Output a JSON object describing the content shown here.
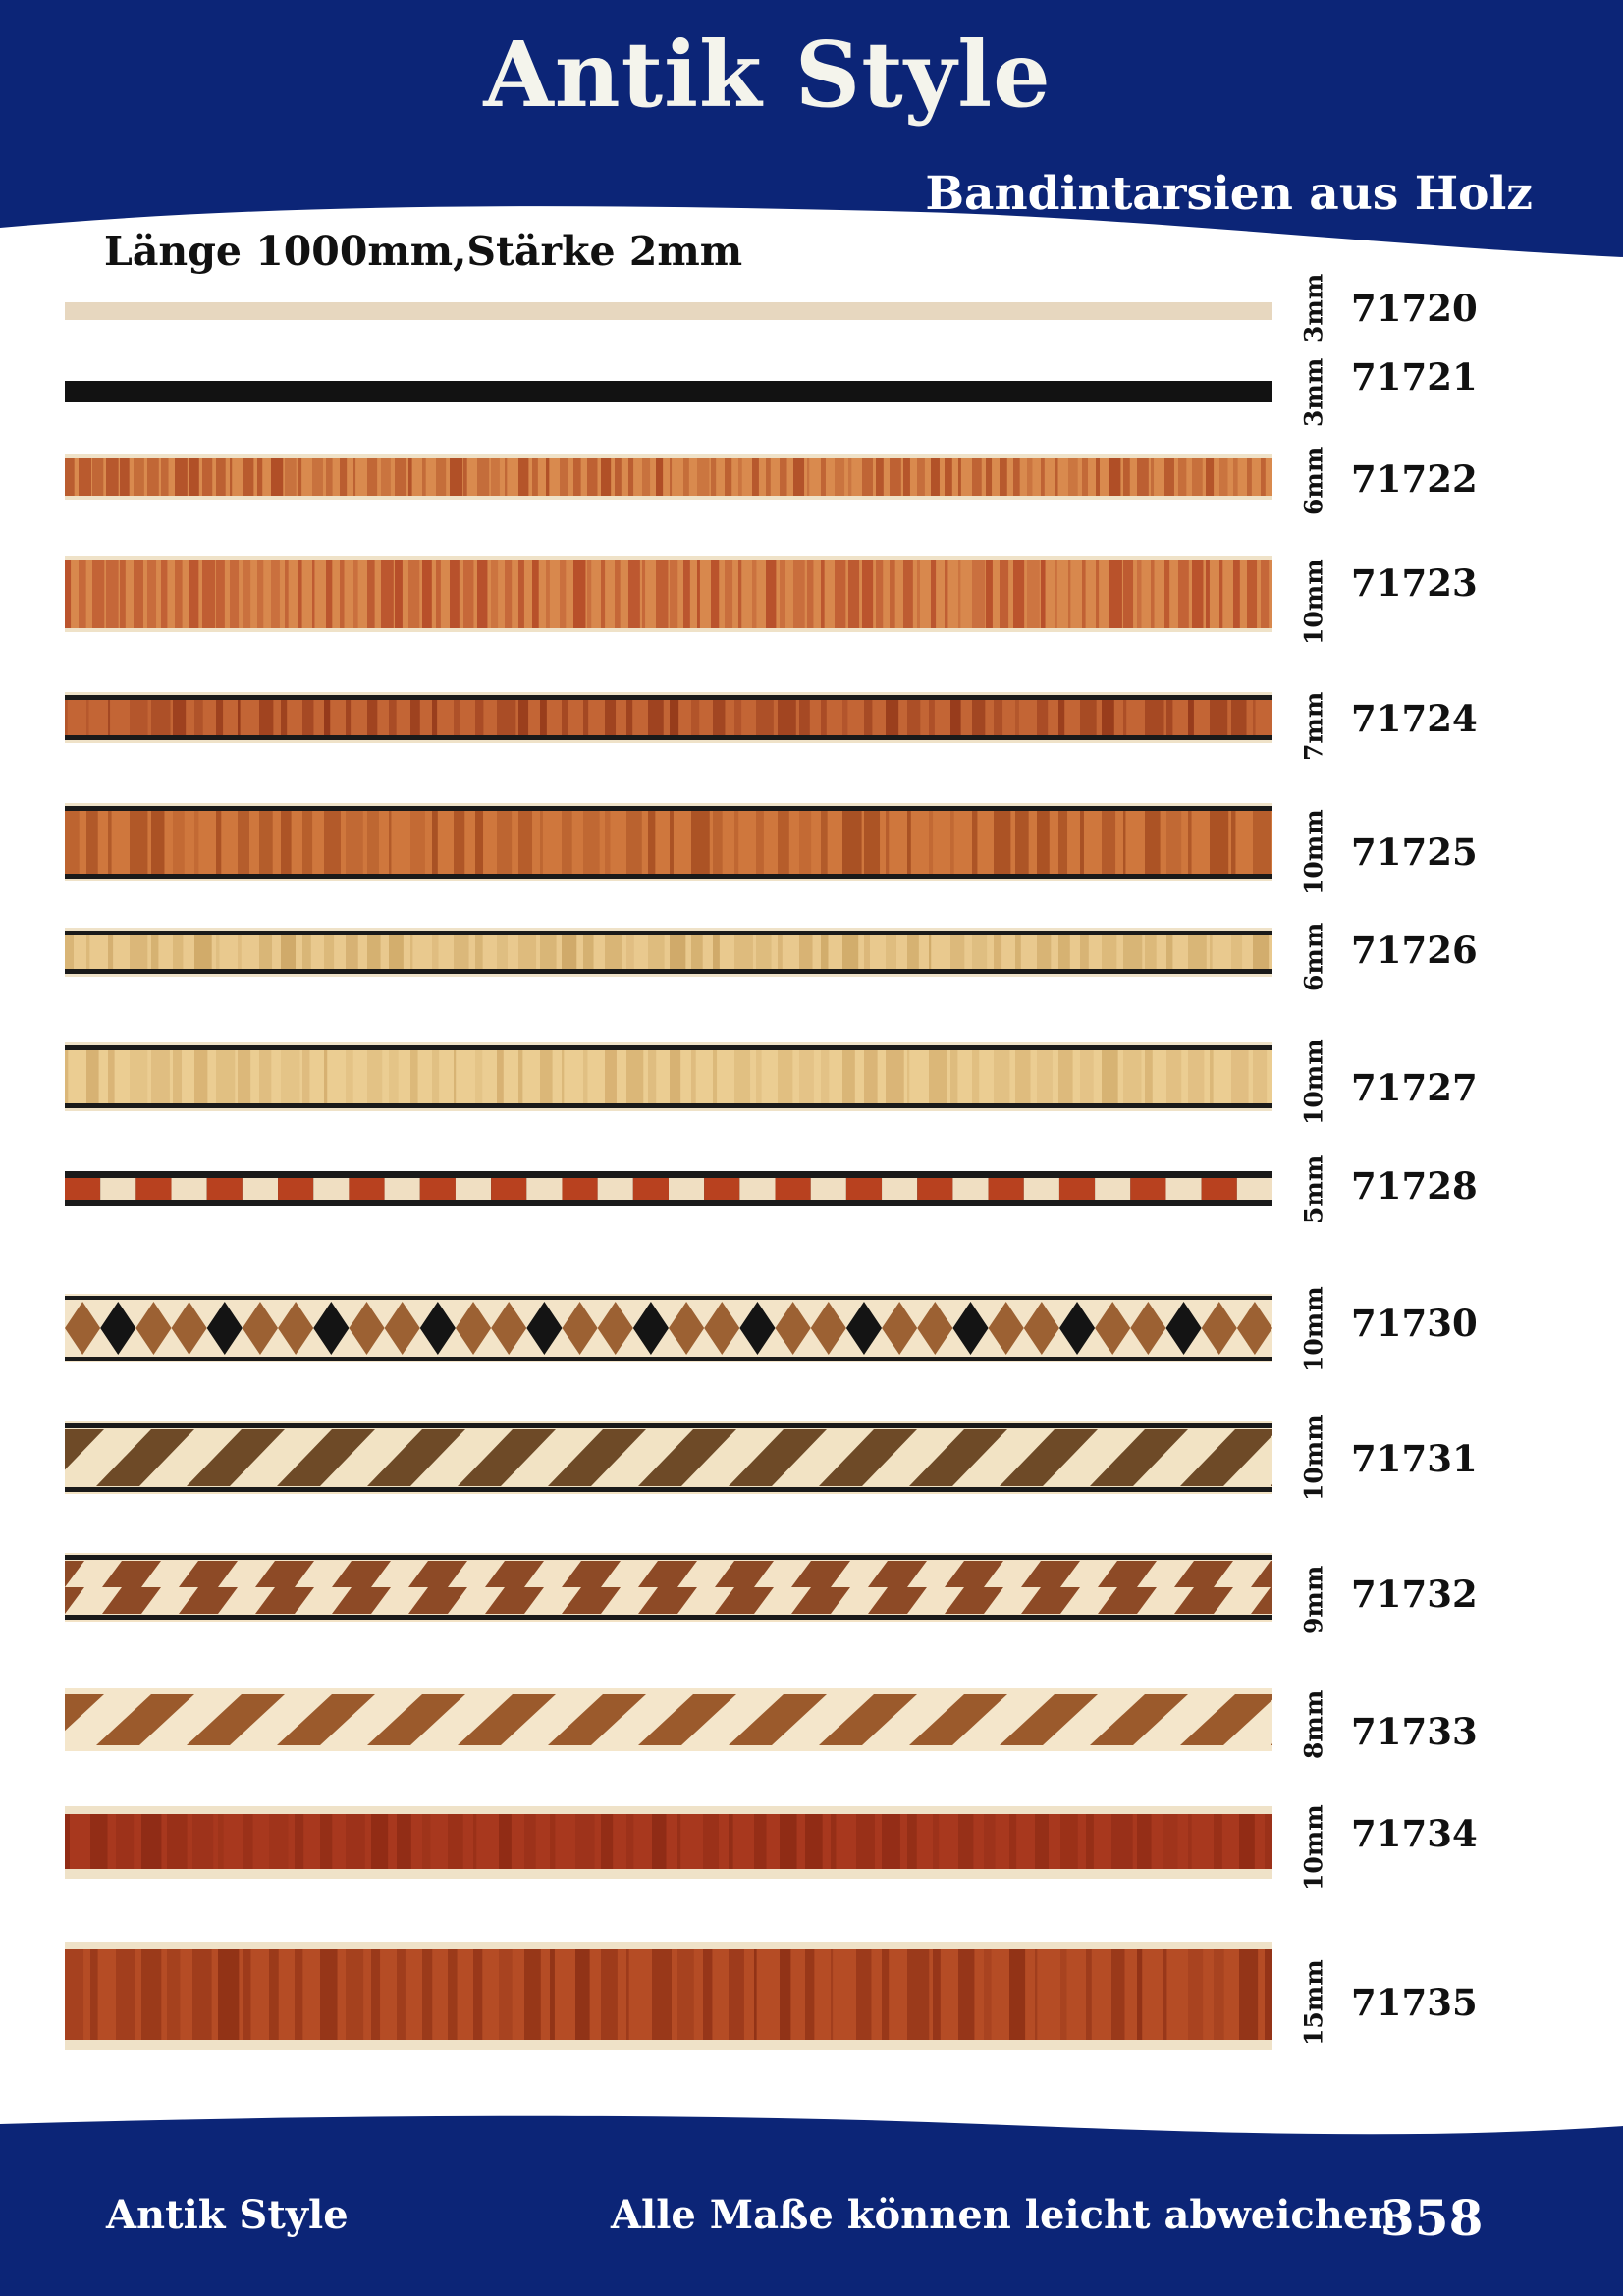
{
  "header": {
    "brand": "Antik Style",
    "subtitle": "Bandintarsien aus Holz",
    "spec": "Länge 1000mm,Stärke 2mm",
    "color": "#0c2577"
  },
  "products": [
    {
      "article": "71720",
      "width": "3mm",
      "pattern": "plain",
      "colors": [
        "#e7d7bf"
      ]
    },
    {
      "article": "71721",
      "width": "3mm",
      "pattern": "plain",
      "colors": [
        "#121212"
      ]
    },
    {
      "article": "71722",
      "width": "6mm",
      "pattern": "grain",
      "colors": [
        "#d98a4e",
        "#a8431f"
      ]
    },
    {
      "article": "71723",
      "width": "10mm",
      "pattern": "grain",
      "colors": [
        "#d8884d",
        "#b14524"
      ]
    },
    {
      "article": "71724",
      "width": "7mm",
      "pattern": "lined-grain",
      "colors": [
        "#c36535",
        "#8e3316"
      ]
    },
    {
      "article": "71725",
      "width": "10mm",
      "pattern": "lined-grain",
      "colors": [
        "#cf773d",
        "#a24a1f"
      ]
    },
    {
      "article": "71726",
      "width": "6mm",
      "pattern": "lined-grain",
      "colors": [
        "#e9c98e",
        "#cba462"
      ]
    },
    {
      "article": "71727",
      "width": "10mm",
      "pattern": "lined-grain",
      "colors": [
        "#ebcd92",
        "#d3ac6c"
      ]
    },
    {
      "article": "71728",
      "width": "5mm",
      "pattern": "checker",
      "colors": [
        "#b8411f",
        "#f0dfc2"
      ]
    },
    {
      "article": "71730",
      "width": "10mm",
      "pattern": "diamond",
      "colors": [
        "#9c6133",
        "#141414",
        "#f3e4c8"
      ]
    },
    {
      "article": "71731",
      "width": "10mm",
      "pattern": "diagonal",
      "colors": [
        "#6e4a27",
        "#f2e3c4"
      ]
    },
    {
      "article": "71732",
      "width": "9mm",
      "pattern": "herringbone",
      "colors": [
        "#8d4a26",
        "#f3e3c6"
      ]
    },
    {
      "article": "71733",
      "width": "8mm",
      "pattern": "diagonal-light",
      "colors": [
        "#9b5a2c",
        "#f4e6cb"
      ]
    },
    {
      "article": "71734",
      "width": "10mm",
      "pattern": "grain-border",
      "colors": [
        "#a8381e",
        "#8c2a14"
      ]
    },
    {
      "article": "71735",
      "width": "15mm",
      "pattern": "grain-border",
      "colors": [
        "#b54c25",
        "#8a2e14"
      ]
    }
  ],
  "footer": {
    "brand": "Antik Style",
    "note": "Alle Maße können leicht abweichen",
    "page": "358"
  }
}
